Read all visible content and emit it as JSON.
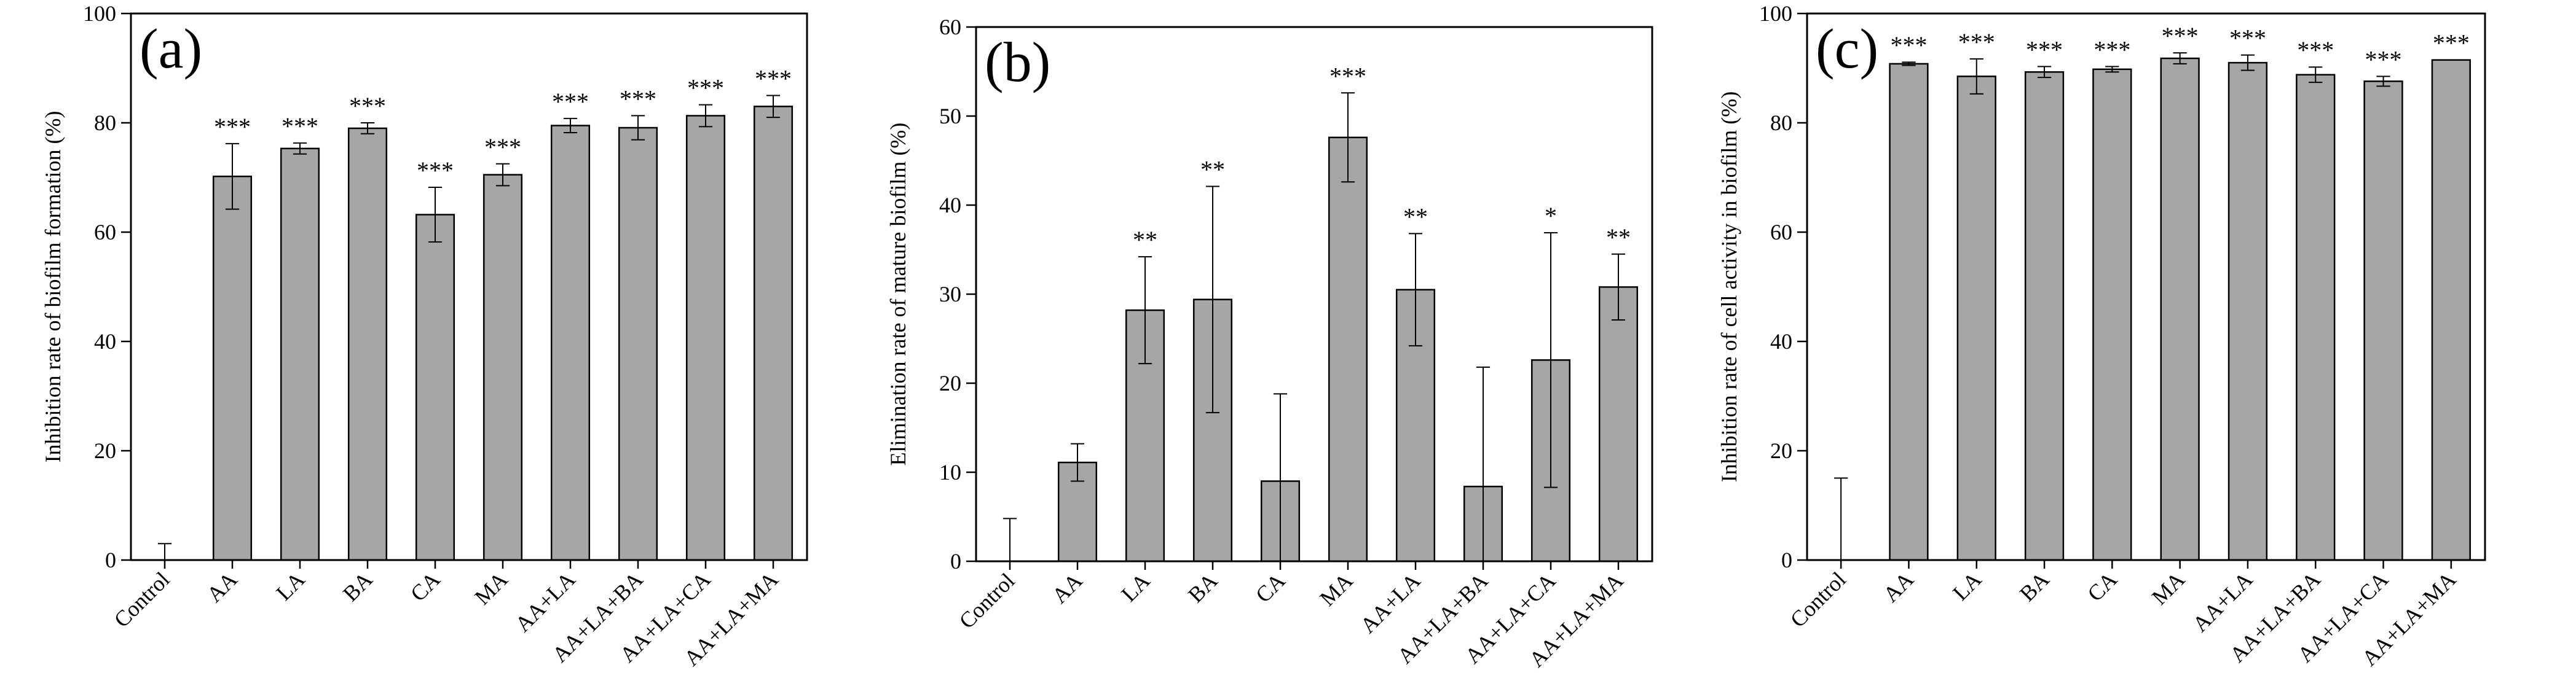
{
  "chart_data": [
    {
      "type": "bar",
      "panel_label": "(a)",
      "ylabel": "Inhibition rate of biofilm formation (%)",
      "ylim": [
        0,
        100
      ],
      "yticks": [
        0,
        20,
        40,
        60,
        80,
        100
      ],
      "categories": [
        "Control",
        "AA",
        "LA",
        "BA",
        "CA",
        "MA",
        "AA+LA",
        "AA+LA+BA",
        "AA+LA+CA",
        "AA+LA+MA"
      ],
      "values": [
        0,
        70.2,
        75.3,
        79.0,
        63.2,
        70.5,
        79.5,
        79.1,
        81.3,
        83.0
      ],
      "errors": [
        3.0,
        6.0,
        1.0,
        1.0,
        5.0,
        2.0,
        1.3,
        2.2,
        2.0,
        2.0
      ],
      "significance": [
        "",
        "***",
        "***",
        "***",
        "***",
        "***",
        "***",
        "***",
        "***",
        "***"
      ],
      "bar_color": "#a6a6a6"
    },
    {
      "type": "bar",
      "panel_label": "(b)",
      "ylabel": "Elimination rate of mature biofilm (%)",
      "ylim": [
        0,
        60
      ],
      "yticks": [
        0,
        10,
        20,
        30,
        40,
        50,
        60
      ],
      "categories": [
        "Control",
        "AA",
        "LA",
        "BA",
        "CA",
        "MA",
        "AA+LA",
        "AA+LA+BA",
        "AA+LA+CA",
        "AA+LA+MA"
      ],
      "values": [
        0,
        11.1,
        28.2,
        29.4,
        9.0,
        47.6,
        30.5,
        8.4,
        22.6,
        30.8
      ],
      "errors": [
        4.8,
        2.1,
        6.0,
        12.7,
        9.8,
        5.0,
        6.3,
        13.4,
        14.3,
        3.7
      ],
      "significance": [
        "",
        "",
        "**",
        "**",
        "",
        "***",
        "**",
        "",
        "*",
        "**"
      ],
      "bar_color": "#a6a6a6"
    },
    {
      "type": "bar",
      "panel_label": "(c)",
      "ylabel": "Inhibition rate of cell activity in biofilm (%)",
      "ylim": [
        0,
        100
      ],
      "yticks": [
        0,
        20,
        40,
        60,
        80,
        100
      ],
      "categories": [
        "Control",
        "AA",
        "LA",
        "BA",
        "CA",
        "MA",
        "AA+LA",
        "AA+LA+BA",
        "AA+LA+CA",
        "AA+LA+MA"
      ],
      "values": [
        0,
        90.8,
        88.5,
        89.3,
        89.8,
        91.8,
        91.0,
        88.8,
        87.6,
        91.5
      ],
      "errors": [
        15.0,
        0.3,
        3.2,
        1.0,
        0.5,
        1.0,
        1.4,
        1.4,
        0.9,
        0.0
      ],
      "significance": [
        "",
        "***",
        "***",
        "***",
        "***",
        "***",
        "***",
        "***",
        "***",
        "***"
      ],
      "bar_color": "#a6a6a6"
    }
  ]
}
